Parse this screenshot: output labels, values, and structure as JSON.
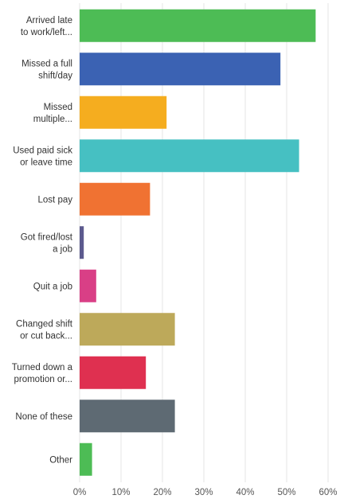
{
  "chart_data": {
    "type": "bar",
    "orientation": "horizontal",
    "categories": [
      [
        "Arrived late",
        "to work/left..."
      ],
      [
        "Missed a full",
        "shift/day"
      ],
      [
        "Missed",
        "multiple..."
      ],
      [
        "Used paid sick",
        "or leave time"
      ],
      [
        "Lost pay"
      ],
      [
        "Got fired/lost",
        "a job"
      ],
      [
        "Quit a job"
      ],
      [
        "Changed shift",
        "or cut back..."
      ],
      [
        "Turned down a",
        "promotion or..."
      ],
      [
        "None of these"
      ],
      [
        "Other"
      ]
    ],
    "values": [
      57,
      48.5,
      21,
      53,
      17,
      1,
      4,
      23,
      16,
      23,
      3
    ],
    "colors": [
      "#4dbc55",
      "#3b62b3",
      "#f5ad1f",
      "#46c0c2",
      "#f07232",
      "#5c5a8e",
      "#d93f86",
      "#bda95a",
      "#df3050",
      "#5e6a73",
      "#4dbc55"
    ],
    "xlim": [
      0,
      60
    ],
    "x_ticks": [
      "0%",
      "10%",
      "20%",
      "30%",
      "40%",
      "50%",
      "60%"
    ],
    "grid": true,
    "title": "",
    "xlabel": "",
    "ylabel": ""
  }
}
